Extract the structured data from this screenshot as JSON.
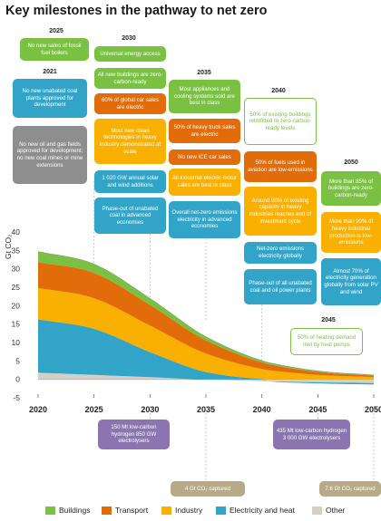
{
  "title": "Key milestones in the pathway to net zero",
  "years": {
    "y2021": "2021",
    "y2025": "2025",
    "y2030": "2030",
    "y2035": "2035",
    "y2040": "2040",
    "y2045": "2045",
    "y2050": "2050"
  },
  "milestones": {
    "m2025_1": "No new sales of fossil fuel boilers",
    "m2021_1": "No new unabated coal plants approved for development",
    "m2021_2": "No new oil and gas fields approved for development; no new coal mines or mine extensions",
    "m2030_1": "Universal energy access",
    "m2030_2": "All new buildings are zero-carbon-ready",
    "m2030_3": "60% of global car sales are electric",
    "m2030_4": "Most new clean technologies in heavy industry demonstrated at scale",
    "m2030_5": "1 020 GW annual solar and wind additions",
    "m2030_6": "Phase-out of unabated coal in advanced economies",
    "m2035_1": "Most appliances and cooling systems sold are best in class",
    "m2035_2": "50% of heavy truck sales are electric",
    "m2035_3": "No new ICE car sales",
    "m2035_4": "All industrial electric motor sales are best in class",
    "m2035_5": "Overall net-zero emissions electricity in advanced economies",
    "m2040_1": "50% of existing buildings retrofitted to zero-carbon-ready levels",
    "m2040_2": "50% of fuels used in aviation are low-emissions",
    "m2040_3": "Around 90% of existing capacity in heavy industries reaches end of investment cycle",
    "m2040_4": "Net-zero emissions electricity globally",
    "m2040_5": "Phase-out of all unabated coal and oil power plants",
    "m2050_1": "More than 85% of buildings are zero-carbon-ready",
    "m2050_2": "More than 90% of heavy industrial production is low-emissions",
    "m2050_3": "Almost 70% of electricity generation globally from solar PV and wind",
    "m2045_1": "50% of heating demand met by heat pumps",
    "h2030": "150 Mt low-carbon hydrogen 850 GW electrolysers",
    "c2030": "4 Gt CO₂ captured",
    "h2045": "435 Mt low-carbon hydrogen 3 000 GW electrolysers",
    "c2050": "7.6 Gt CO₂ captured"
  },
  "colors": {
    "buildings": "#7ac143",
    "transport": "#e36c0a",
    "industry": "#f9b000",
    "electricity": "#31a4c7",
    "other": "#d4d0c8"
  },
  "chart_data": {
    "type": "area",
    "ylabel": "Gt CO₂",
    "y_ticks": [
      "-5",
      "0",
      "5",
      "10",
      "15",
      "20",
      "25",
      "30",
      "35",
      "40"
    ],
    "x_ticks": [
      "2020",
      "2025",
      "2030",
      "2035",
      "2040",
      "2045",
      "2050"
    ],
    "ylim": [
      -5,
      40
    ],
    "xlim": [
      2020,
      2050
    ],
    "x": [
      2020,
      2025,
      2030,
      2035,
      2040,
      2045,
      2050
    ],
    "series": [
      {
        "name": "Other",
        "values": [
          1.8,
          1.2,
          0.6,
          -0.1,
          -0.5,
          -0.8,
          -1.0
        ]
      },
      {
        "name": "Electricity and heat",
        "values": [
          14.5,
          12.5,
          6.8,
          2.0,
          0.1,
          -0.3,
          -0.4
        ]
      },
      {
        "name": "Industry",
        "values": [
          8.5,
          8.3,
          7.2,
          5.0,
          2.7,
          1.2,
          0.6
        ]
      },
      {
        "name": "Transport",
        "values": [
          7.0,
          6.9,
          5.6,
          3.6,
          1.8,
          0.8,
          0.4
        ]
      },
      {
        "name": "Buildings",
        "values": [
          2.9,
          2.4,
          1.8,
          1.0,
          0.5,
          0.3,
          0.2
        ]
      }
    ],
    "legend": [
      "Buildings",
      "Transport",
      "Industry",
      "Electricity and heat",
      "Other"
    ],
    "legend_position": "bottom"
  }
}
